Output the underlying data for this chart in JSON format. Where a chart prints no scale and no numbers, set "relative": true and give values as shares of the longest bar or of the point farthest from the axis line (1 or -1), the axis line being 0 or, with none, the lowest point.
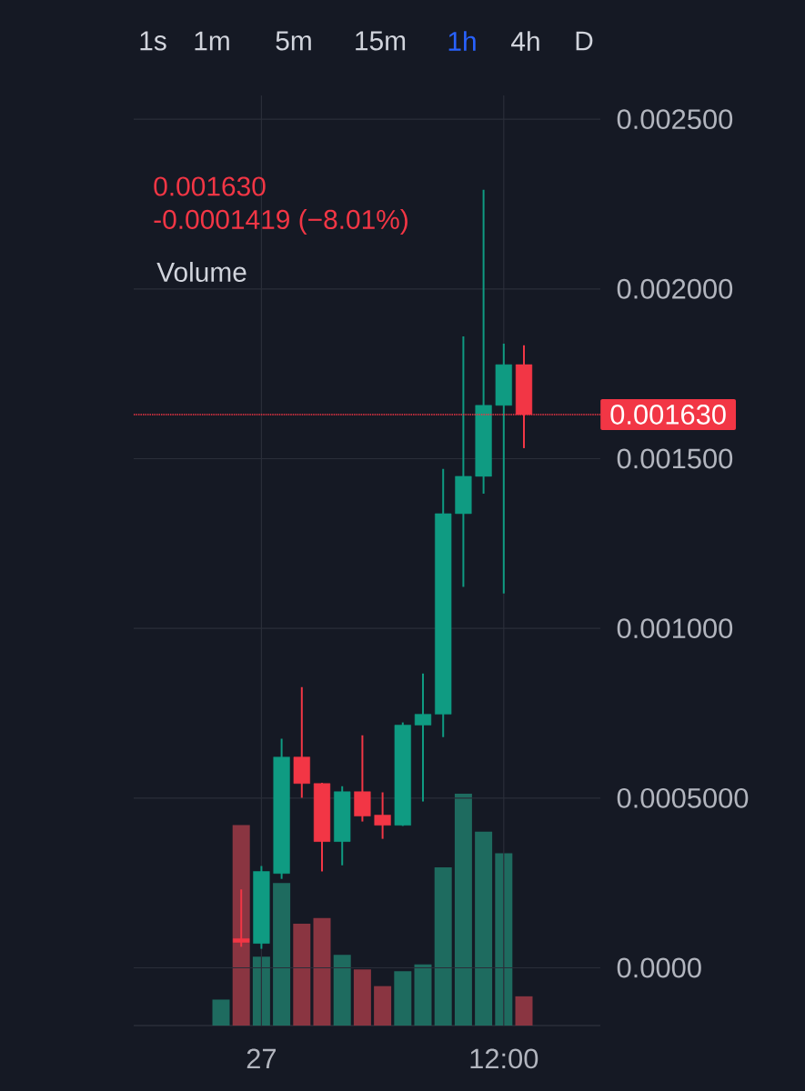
{
  "chart_data": [
    {
      "type": "candlestick",
      "categories": [
        null,
        null,
        "27",
        null,
        null,
        null,
        null,
        null,
        null,
        null,
        null,
        null,
        null,
        null,
        "12:00",
        null
      ],
      "ohlc": [
        null,
        [
          8.6e-05,
          0.000231,
          6.2e-05,
          7.5e-05
        ],
        [
          7.2e-05,
          0.0003,
          5.6e-05,
          0.000284
        ],
        [
          0.000278,
          0.000675,
          0.000262,
          0.000621
        ],
        [
          0.000621,
          0.000827,
          0.000501,
          0.000543
        ],
        [
          0.000543,
          0.000545,
          0.000284,
          0.000372
        ],
        [
          0.000372,
          0.000535,
          0.000302,
          0.000519
        ],
        [
          0.000519,
          0.000685,
          0.000431,
          0.000447
        ],
        [
          0.00045,
          0.000517,
          0.00038,
          0.00042
        ],
        [
          0.00042,
          0.000723,
          0.000418,
          0.000715
        ],
        [
          0.000715,
          0.000867,
          0.00049,
          0.000747
        ],
        [
          0.000747,
          0.00147,
          0.00068,
          0.001338
        ],
        [
          0.001338,
          0.00186,
          0.001122,
          0.001448
        ],
        [
          0.001448,
          0.002292,
          0.001397,
          0.001657
        ],
        [
          0.001657,
          0.001839,
          0.001103,
          0.001777
        ],
        [
          0.001777,
          0.001834,
          0.001531,
          0.00163
        ]
      ],
      "ylim": [
        -0.00017,
        0.00257
      ],
      "yticks": [
        {
          "value": 0.0025,
          "label": "0.002500"
        },
        {
          "value": 0.002,
          "label": "0.002000"
        },
        {
          "value": 0.0015,
          "label": "0.001500"
        },
        {
          "value": 0.001,
          "label": "0.001000"
        },
        {
          "value": 0.0005,
          "label": "0.0005000"
        },
        {
          "value": 0,
          "label": "0.0000"
        }
      ],
      "grid": true,
      "ref_lines": [
        {
          "axis": "y",
          "value": 0.00163,
          "label": "0.001630",
          "color": "#f23645",
          "line_style": "dotted"
        }
      ],
      "annotations": [
        "0.001630",
        "-0.0001419 (−8.01%)",
        "Volume",
        "1s",
        "1m",
        "5m",
        "15m",
        "1h",
        "4h",
        "D"
      ]
    },
    {
      "type": "bar",
      "relative": true,
      "categories": [
        null,
        null,
        null,
        null,
        null,
        null,
        null,
        null,
        null,
        null,
        null,
        null,
        null,
        null,
        null,
        null
      ],
      "values": [
        0.112,
        0.865,
        0.297,
        0.615,
        0.439,
        0.464,
        0.305,
        0.242,
        0.17,
        0.234,
        0.264,
        0.682,
        1,
        0.836,
        0.743,
        0.126
      ],
      "colors": [
        "#1e6b5f",
        "#8a3541",
        "#1e6b5f",
        "#1e6b5f",
        "#8a3541",
        "#8a3541",
        "#1e6b5f",
        "#8a3541",
        "#8a3541",
        "#1e6b5f",
        "#1e6b5f",
        "#1e6b5f",
        "#1e6b5f",
        "#1e6b5f",
        "#1e6b5f",
        "#8a3541"
      ]
    }
  ]
}
